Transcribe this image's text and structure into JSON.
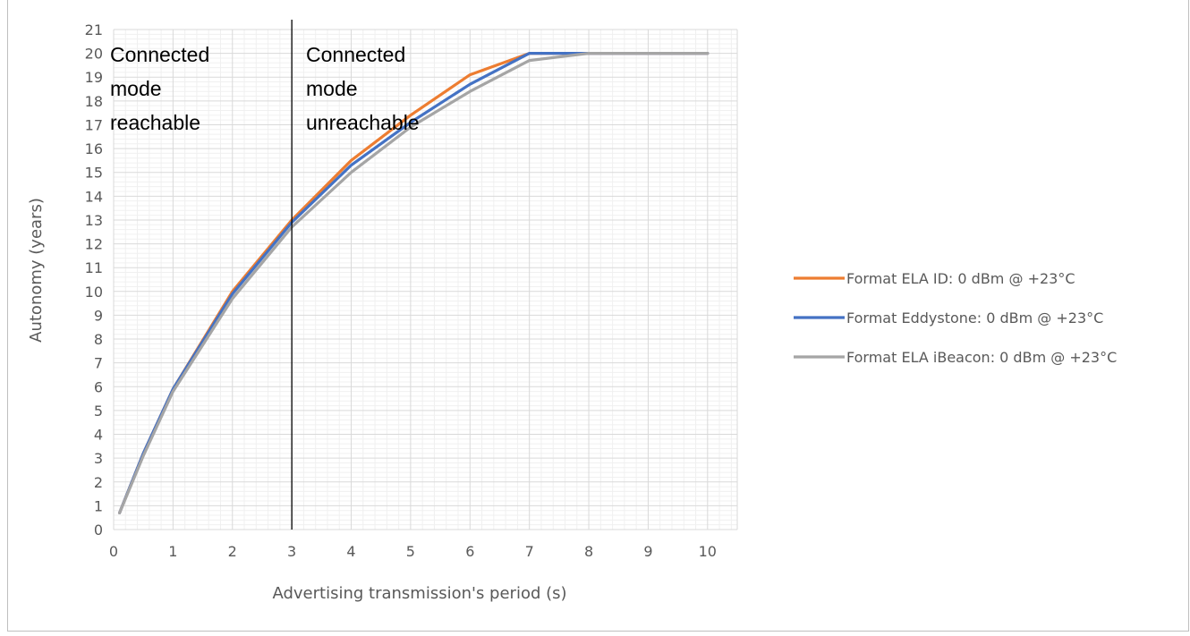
{
  "chart_data": {
    "type": "line",
    "xlabel": "Advertising transmission's period (s)",
    "ylabel": "Autonomy (years)",
    "xlim": [
      0,
      10.5
    ],
    "ylim": [
      0,
      21
    ],
    "x_ticks": [
      "0",
      "1",
      "2",
      "3",
      "4",
      "5",
      "6",
      "7",
      "8",
      "9",
      "10"
    ],
    "y_ticks": [
      "0",
      "1",
      "2",
      "3",
      "4",
      "5",
      "6",
      "7",
      "8",
      "9",
      "10",
      "11",
      "12",
      "13",
      "14",
      "15",
      "16",
      "17",
      "18",
      "19",
      "20",
      "21"
    ],
    "grid": true,
    "legend_position": "right",
    "series": [
      {
        "name": "Format ELA ID: 0 dBm @ +23°C",
        "color": "#ed7d31",
        "x": [
          0.1,
          0.5,
          1,
          2,
          3,
          4,
          5,
          6,
          7,
          8,
          10
        ],
        "y": [
          0.7,
          3.2,
          5.9,
          10.0,
          13.0,
          15.5,
          17.4,
          19.1,
          20.0,
          20.0,
          20.0
        ]
      },
      {
        "name": "Format Eddystone: 0 dBm @ +23°C",
        "color": "#4472c4",
        "x": [
          0.1,
          0.5,
          1,
          2,
          3,
          4,
          5,
          6,
          7,
          8,
          10
        ],
        "y": [
          0.7,
          3.2,
          5.9,
          9.9,
          12.9,
          15.3,
          17.1,
          18.7,
          20.0,
          20.0,
          20.0
        ]
      },
      {
        "name": "Format ELA iBeacon: 0 dBm @ +23°C",
        "color": "#a5a5a5",
        "x": [
          0.1,
          0.5,
          1,
          2,
          3,
          4,
          5,
          6,
          7,
          8,
          10
        ],
        "y": [
          0.7,
          3.1,
          5.8,
          9.7,
          12.7,
          15.0,
          16.9,
          18.4,
          19.7,
          20.0,
          20.0
        ]
      }
    ],
    "divider": {
      "x": 3,
      "left_label_lines": [
        "Connected",
        "mode",
        "reachable"
      ],
      "right_label_lines": [
        "Connected",
        "mode",
        "unreachable"
      ]
    }
  }
}
